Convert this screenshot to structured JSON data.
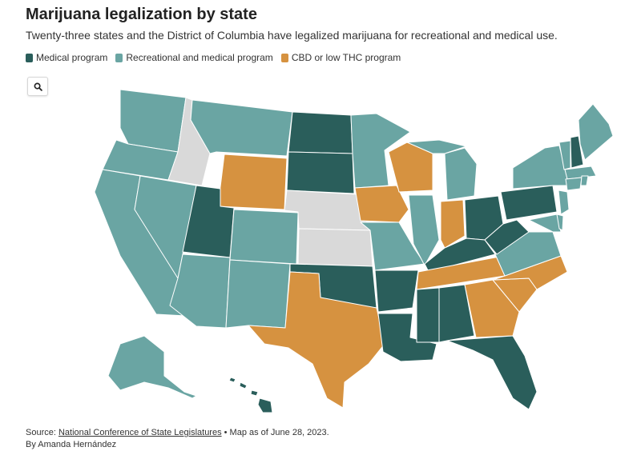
{
  "header": {
    "title": "Marijuana legalization by state",
    "subtitle": "Twenty-three states and the District of Columbia have legalized marijuana for recreational and medical use."
  },
  "legend": [
    {
      "label": "Medical program",
      "color": "#2a5e5b"
    },
    {
      "label": "Recreational and medical program",
      "color": "#6aa5a3"
    },
    {
      "label": "CBD or low THC program",
      "color": "#d69240"
    }
  ],
  "colors": {
    "medical": "#2a5e5b",
    "recreational": "#6aa5a3",
    "cbd": "#d69240",
    "none": "#d9d9d9"
  },
  "controls": {
    "search_icon": "search-icon"
  },
  "footer": {
    "source_prefix": "Source: ",
    "source_link": "National Conference of State Legislatures",
    "source_suffix": " • Map as of June 28, 2023.",
    "byline": "By Amanda Hernández"
  }
}
